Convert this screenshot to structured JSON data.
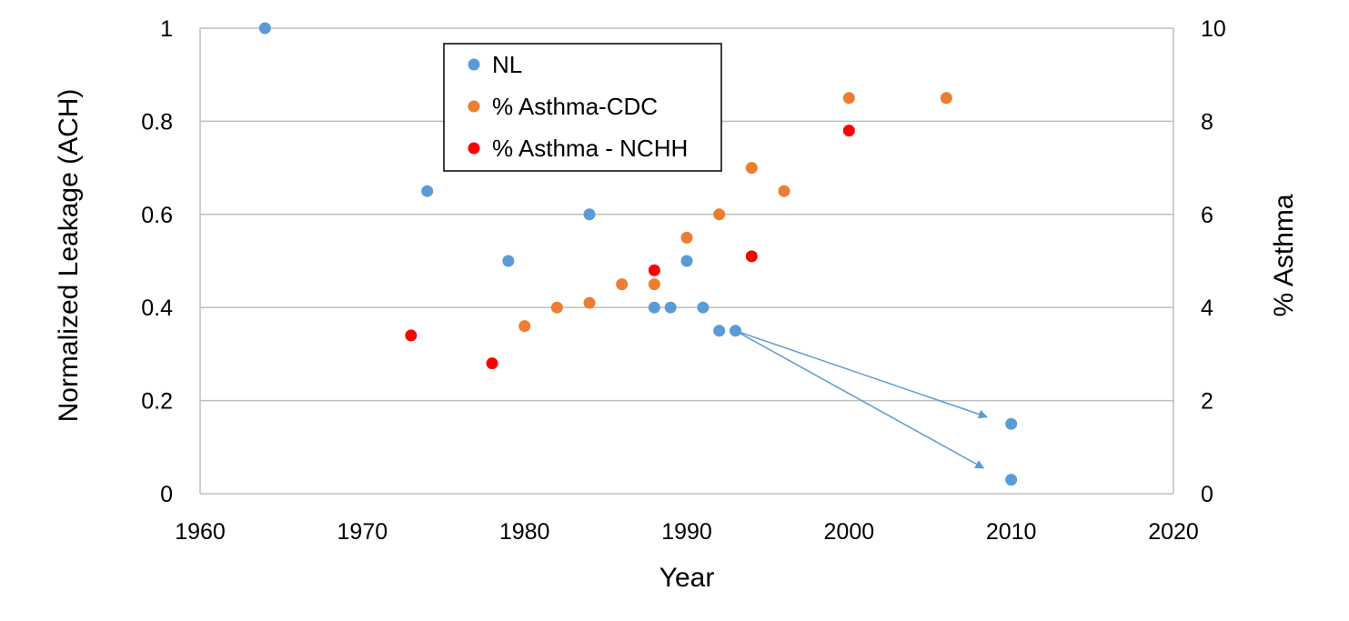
{
  "chart_data": {
    "type": "scatter",
    "title": "",
    "xlabel": "Year",
    "ylabel": "Normalized Leakage (ACH)",
    "y2label": "% Asthma",
    "xlim": [
      1960,
      2020
    ],
    "ylim": [
      0,
      1
    ],
    "y2lim": [
      0,
      10
    ],
    "xticks": [
      "1960",
      "1970",
      "1980",
      "1990",
      "2000",
      "2010",
      "2020"
    ],
    "yticks": [
      "0",
      "0.2",
      "0.4",
      "0.6",
      "0.8",
      "1"
    ],
    "y2ticks": [
      "0",
      "2",
      "4",
      "6",
      "8",
      "10"
    ],
    "grid": "horizontal",
    "legend_position": "top-center",
    "series": [
      {
        "name": "NL",
        "axis": "left",
        "color": "#5b9bd5",
        "points": [
          [
            1964,
            1.0
          ],
          [
            1974,
            0.65
          ],
          [
            1979,
            0.5
          ],
          [
            1984,
            0.6
          ],
          [
            1988,
            0.4
          ],
          [
            1989,
            0.4
          ],
          [
            1990,
            0.5
          ],
          [
            1991,
            0.4
          ],
          [
            1992,
            0.35
          ],
          [
            1993,
            0.35
          ],
          [
            2010,
            0.15
          ],
          [
            2010,
            0.03
          ]
        ]
      },
      {
        "name": "% Asthma-CDC",
        "axis": "right",
        "color": "#ed7d31",
        "points": [
          [
            1980,
            3.6
          ],
          [
            1982,
            4.0
          ],
          [
            1984,
            4.1
          ],
          [
            1986,
            4.5
          ],
          [
            1988,
            4.5
          ],
          [
            1990,
            5.5
          ],
          [
            1992,
            6.0
          ],
          [
            1994,
            7.0
          ],
          [
            1996,
            6.5
          ],
          [
            2000,
            8.5
          ],
          [
            2006,
            8.5
          ]
        ]
      },
      {
        "name": "% Asthma - NCHH",
        "axis": "right",
        "color": "#ff0000",
        "points": [
          [
            1973,
            3.4
          ],
          [
            1978,
            2.8
          ],
          [
            1988,
            4.8
          ],
          [
            1994,
            5.1
          ],
          [
            2000,
            7.8
          ]
        ]
      }
    ],
    "annotations": [
      {
        "type": "arrow",
        "color": "#5b9bd5",
        "from": [
          1993,
          0.35
        ],
        "to": [
          2008.5,
          0.165
        ]
      },
      {
        "type": "arrow",
        "color": "#5b9bd5",
        "from": [
          1993,
          0.35
        ],
        "to": [
          2008.3,
          0.055
        ]
      }
    ]
  }
}
